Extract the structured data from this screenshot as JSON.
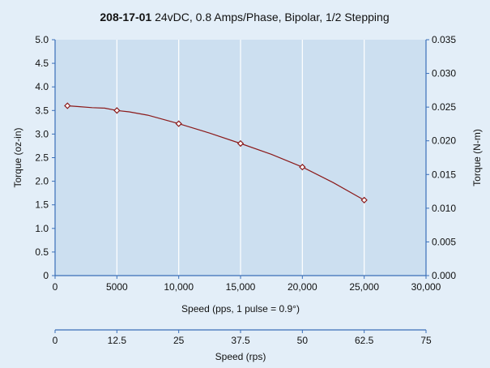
{
  "colors": {
    "background": "#e3eef8",
    "plot_area": "#ccdff0",
    "gridline": "#ffffff",
    "axis": "#3a6fb8",
    "series": "#8b1a1a"
  },
  "chart_data": {
    "type": "line",
    "title_bold": "208-17-01",
    "title_rest": " 24vDC, 0.8 Amps/Phase, Bipolar, 1/2 Stepping",
    "xlabel": "Speed (pps, 1 pulse = 0.9°)",
    "ylabel": "Torque (oz-in)",
    "ylabel_right": "Torque (N-m)",
    "xlim": [
      0,
      30000
    ],
    "ylim": [
      0,
      5.0
    ],
    "ylim_right": [
      0,
      0.035
    ],
    "x_ticks": [
      0,
      5000,
      10000,
      15000,
      20000,
      25000,
      30000
    ],
    "x_tick_labels": [
      "0",
      "5000",
      "10,000",
      "15,000",
      "20,000",
      "25,000",
      "30,000"
    ],
    "y_ticks": [
      0,
      0.5,
      1.0,
      1.5,
      2.0,
      2.5,
      3.0,
      3.5,
      4.0,
      4.5,
      5.0
    ],
    "y_tick_labels": [
      "0",
      "0.5",
      "1.0",
      "1.5",
      "2.0",
      "2.5",
      "3.0",
      "3.5",
      "4.0",
      "4.5",
      "5.0"
    ],
    "y_right_ticks": [
      0,
      0.005,
      0.01,
      0.015,
      0.02,
      0.025,
      0.03,
      0.035
    ],
    "y_right_tick_labels": [
      "0.000",
      "0.005",
      "0.010",
      "0.015",
      "0.020",
      "0.025",
      "0.030",
      "0.035"
    ],
    "grid": "vertical",
    "series": [
      {
        "x": [
          1000,
          5000,
          10000,
          15000,
          20000,
          25000
        ],
        "y": [
          3.6,
          3.5,
          3.22,
          2.8,
          2.3,
          1.6
        ],
        "curve_x": [
          1000,
          2000,
          3000,
          4000,
          5000,
          6000,
          7500,
          10000,
          12500,
          15000,
          17500,
          20000,
          22500,
          25000
        ],
        "curve_y": [
          3.6,
          3.58,
          3.56,
          3.55,
          3.5,
          3.47,
          3.4,
          3.22,
          3.02,
          2.8,
          2.57,
          2.3,
          1.97,
          1.6
        ]
      }
    ],
    "secondary_x_axis": {
      "label": "Speed (rps)",
      "xlim": [
        0,
        75
      ],
      "ticks": [
        0,
        12.5,
        25,
        37.5,
        50,
        62.5,
        75
      ],
      "tick_labels": [
        "0",
        "12.5",
        "25",
        "37.5",
        "50",
        "62.5",
        "75"
      ]
    }
  }
}
